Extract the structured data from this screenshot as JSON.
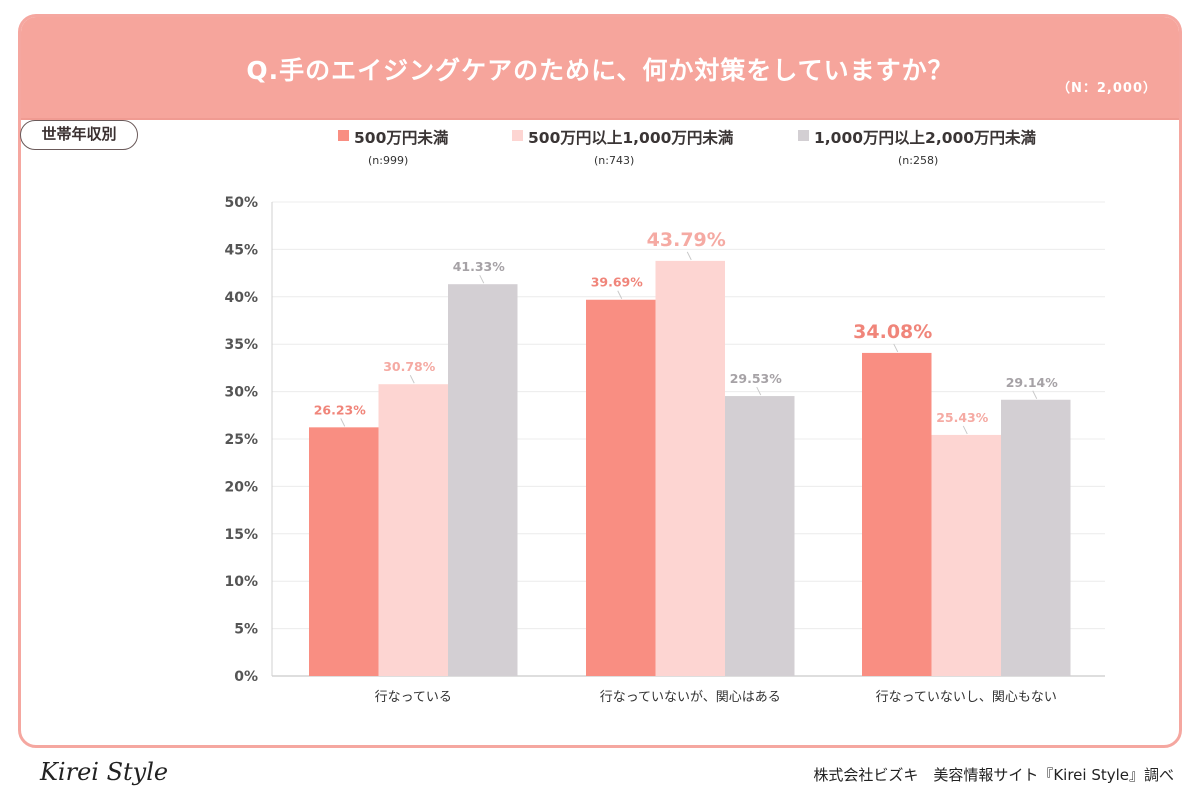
{
  "header": {
    "title": "Q.手のエイジングケアのために、何か対策をしていますか？",
    "sample": "（N：2,000）"
  },
  "segment_label": "世帯年収別",
  "legend": [
    {
      "label": "500万円未満",
      "n": "(n:999)",
      "color": "#f98e82"
    },
    {
      "label": "500万円以上1,000万円未満",
      "n": "(n:743)",
      "color": "#fdd5d2"
    },
    {
      "label": "1,000万円以上2,000万円未満",
      "n": "(n:258)",
      "color": "#d3cfd3"
    }
  ],
  "chart_data": {
    "type": "bar",
    "categories": [
      "行なっている",
      "行なっていないが、関心はある",
      "行なっていないし、関心もない"
    ],
    "series": [
      {
        "name": "500万円未満",
        "values": [
          26.23,
          39.69,
          34.08
        ],
        "labels": [
          "26.23%",
          "39.69%",
          "34.08%"
        ],
        "color": "#f98e82",
        "label_color": "#f0857a"
      },
      {
        "name": "500万円以上1,000万円未満",
        "values": [
          30.78,
          43.79,
          25.43
        ],
        "labels": [
          "30.78%",
          "43.79%",
          "25.43%"
        ],
        "color": "#fdd5d2",
        "label_color": "#f5aaa3"
      },
      {
        "name": "1,000万円以上2,000万円未満",
        "values": [
          41.33,
          29.53,
          29.14
        ],
        "labels": [
          "41.33%",
          "29.53%",
          "29.14%"
        ],
        "color": "#d3cfd3",
        "label_color": "#a6a2a6"
      }
    ],
    "highlight": [
      [
        false,
        false,
        false
      ],
      [
        false,
        true,
        false
      ],
      [
        true,
        false,
        false
      ]
    ],
    "yticks": [
      "0%",
      "5%",
      "10%",
      "15%",
      "20%",
      "25%",
      "30%",
      "35%",
      "40%",
      "45%",
      "50%"
    ],
    "ylim": [
      0,
      50
    ],
    "grid": true,
    "legend_position": "top"
  },
  "footer": {
    "logo": "Kirei Style",
    "credit": "株式会社ビズキ　美容情報サイト『Kirei Style』調べ"
  }
}
